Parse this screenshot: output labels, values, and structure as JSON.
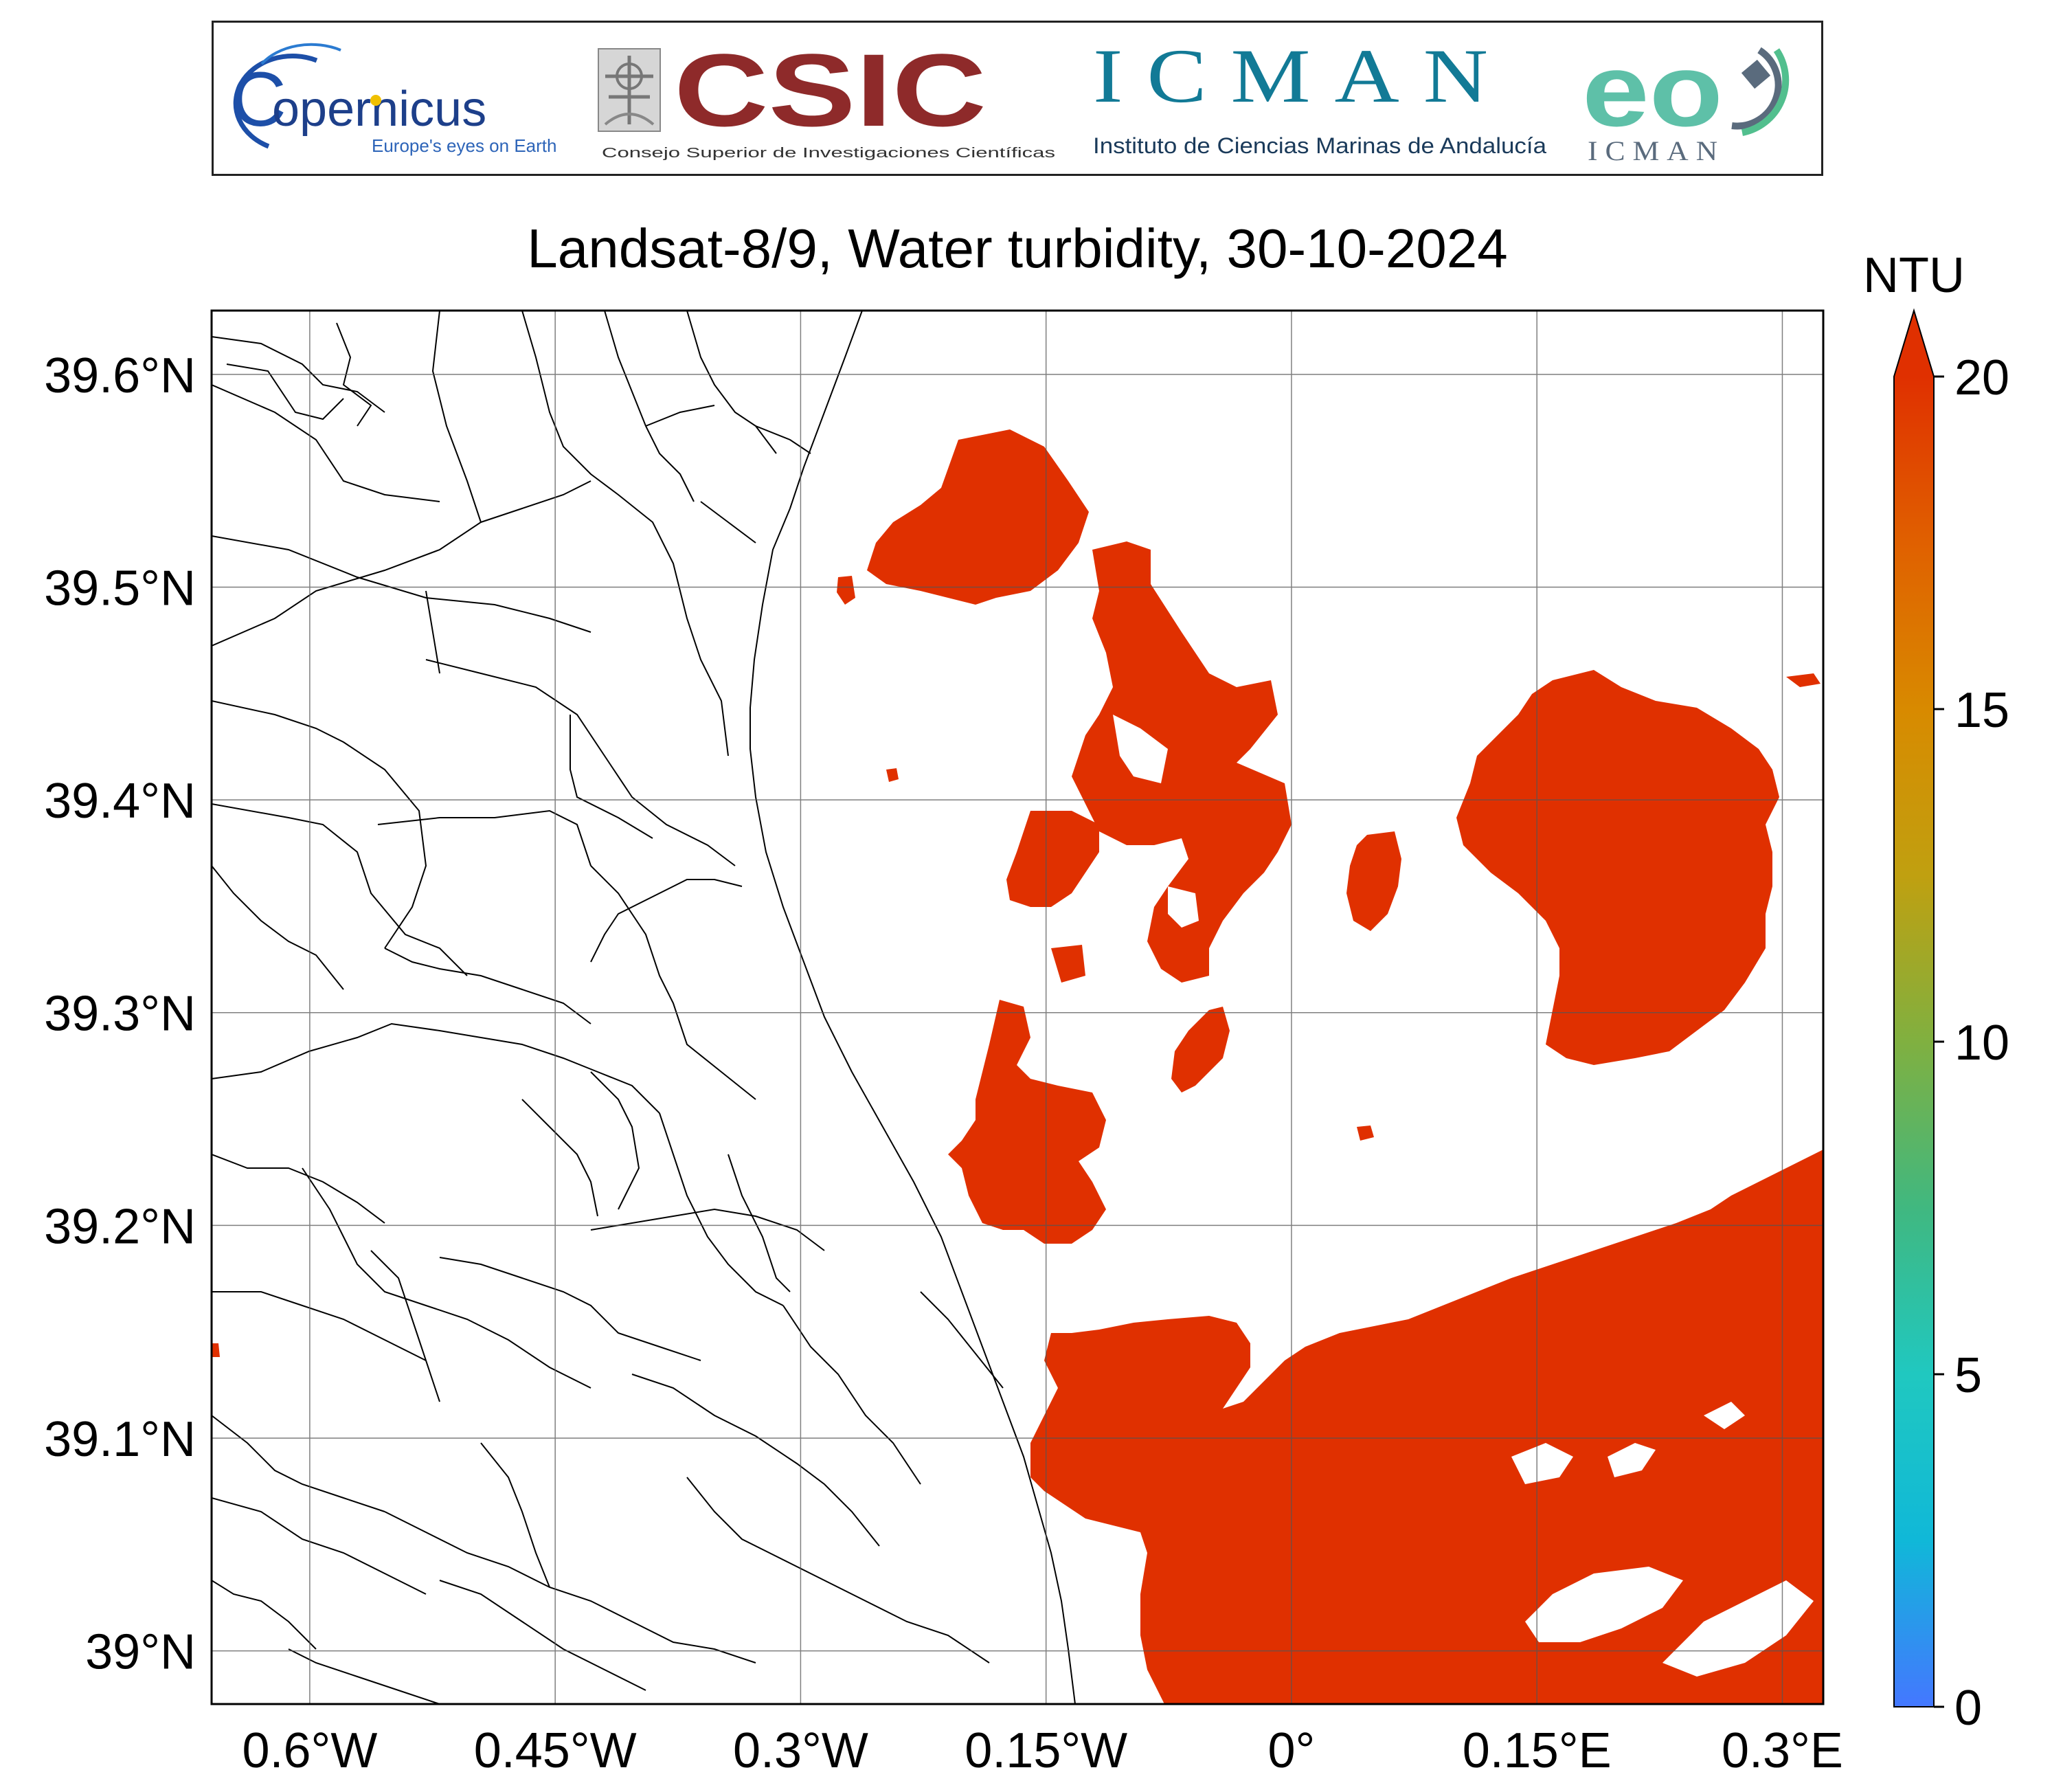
{
  "logos": {
    "copernicus": {
      "name": "opernicus",
      "prefix": "C",
      "tagline": "Europe's eyes on Earth"
    },
    "csic": {
      "name": "CSIC",
      "subtitle": "Consejo Superior de Investigaciones Científicas"
    },
    "icman": {
      "name": "ICMAN",
      "subtitle": "Instituto de Ciencias Marinas de Andalucía"
    },
    "eo_icman": {
      "name": "eo",
      "subtitle": "ICMAN"
    }
  },
  "map": {
    "title": "Landsat-8/9, Water turbidity, 30-10-2024",
    "lon_range": [
      -0.66,
      0.325
    ],
    "lat_range": [
      38.975,
      39.63
    ],
    "lon_ticks": [
      {
        "value": -0.6,
        "label": "0.6°W"
      },
      {
        "value": -0.45,
        "label": "0.45°W"
      },
      {
        "value": -0.3,
        "label": "0.3°W"
      },
      {
        "value": -0.15,
        "label": "0.15°W"
      },
      {
        "value": 0.0,
        "label": "0°"
      },
      {
        "value": 0.15,
        "label": "0.15°E"
      },
      {
        "value": 0.3,
        "label": "0.3°E"
      }
    ],
    "lat_ticks": [
      {
        "value": 39.6,
        "label": "39.6°N"
      },
      {
        "value": 39.5,
        "label": "39.5°N"
      },
      {
        "value": 39.4,
        "label": "39.4°N"
      },
      {
        "value": 39.3,
        "label": "39.3°N"
      },
      {
        "value": 39.2,
        "label": "39.2°N"
      },
      {
        "value": 39.1,
        "label": "39.1°N"
      },
      {
        "value": 39.0,
        "label": "39°N"
      }
    ],
    "grid": true,
    "turbidity_fill_color": "#e03000"
  },
  "colorbar": {
    "unit": "NTU",
    "min": 0,
    "max": 20,
    "extend": "max",
    "ticks": [
      {
        "value": 0,
        "label": "0"
      },
      {
        "value": 5,
        "label": "5"
      },
      {
        "value": 10,
        "label": "10"
      },
      {
        "value": 15,
        "label": "15"
      },
      {
        "value": 20,
        "label": "20"
      }
    ],
    "colors": [
      "#4477ff",
      "#10b8d8",
      "#20c8c0",
      "#40b880",
      "#80b040",
      "#c0a010",
      "#d88a00",
      "#e06000",
      "#e03000"
    ]
  }
}
